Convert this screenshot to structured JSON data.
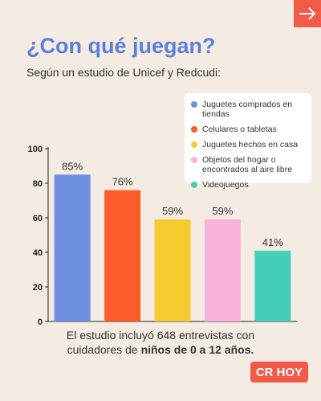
{
  "header": {
    "title": "¿Con qué juegan?",
    "subtitle": "Según un estudio de Unicef y Redcudi:"
  },
  "chart_data": {
    "type": "bar",
    "categories": [
      "Juguetes comprados en tiendas",
      "Celulares o tabletas",
      "Juguetes hechos en casa",
      "Objetos del hogar o encontrados al aire libre",
      "Videojuegos"
    ],
    "colors": [
      "#6f8fe0",
      "#ff5b2b",
      "#f6cb2f",
      "#f8b4da",
      "#45cfb8"
    ],
    "values": [
      85,
      76,
      59,
      59,
      41
    ],
    "value_labels": [
      "85%",
      "76%",
      "59%",
      "59%",
      "41%"
    ],
    "ylim": [
      0,
      100
    ],
    "yticks": [
      0,
      20,
      40,
      60,
      80,
      100
    ]
  },
  "footnote": {
    "line1": "El estudio incluyó 648 entrevistas con",
    "line2": "cuidadores de",
    "line2_bold": "niños de 0 a 12 años."
  },
  "logo": "CR HOY"
}
